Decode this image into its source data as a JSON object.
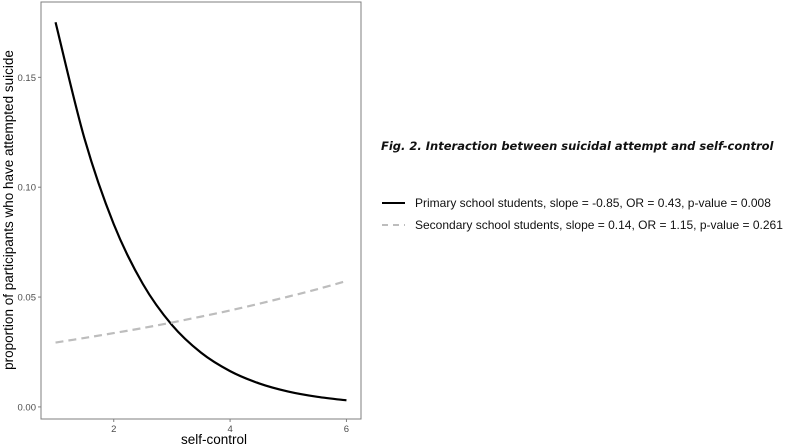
{
  "chart_data": {
    "type": "line",
    "title": "Fig. 2. Interaction between suicidal attempt and self-control",
    "xlabel": "self-control",
    "ylabel": "proportion of participants who have attempted suicide",
    "xlim": [
      0.75,
      6.25
    ],
    "ylim": [
      -0.0055,
      0.1843
    ],
    "xticks": [
      2,
      4,
      6
    ],
    "xtick_labels": [
      "2",
      "4",
      "6"
    ],
    "yticks": [
      0,
      0.05,
      0.1,
      0.15
    ],
    "ytick_labels": [
      "0.00",
      "0.05",
      "0.10",
      "0.15"
    ],
    "grid": false,
    "legend_position": "right",
    "x": [
      1,
      1.5,
      2,
      2.5,
      3,
      3.5,
      4,
      4.5,
      5,
      5.5,
      6
    ],
    "series": [
      {
        "name": "Primary school students, slope = -0.85, OR = 0.43, p-value = 0.008",
        "color": "#000000",
        "dash": "solid",
        "values": [
          0.1751,
          0.1219,
          0.0832,
          0.056,
          0.0373,
          0.0247,
          0.0163,
          0.0107,
          0.007,
          0.0046,
          0.003
        ]
      },
      {
        "name": "Secondary school students, slope = 0.14, OR = 1.15, p-value = 0.261",
        "color": "#bdbdbd",
        "dash": "dashed",
        "values": [
          0.0293,
          0.0314,
          0.0336,
          0.0359,
          0.0384,
          0.0411,
          0.0439,
          0.047,
          0.0502,
          0.0536,
          0.0573
        ]
      }
    ]
  }
}
